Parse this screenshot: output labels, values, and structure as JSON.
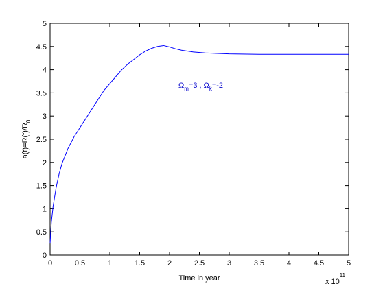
{
  "chart_data": {
    "type": "line",
    "xlabel": "Time in year",
    "xmultiplier": [
      "x 10",
      "11"
    ],
    "ylabel": [
      "a(t)=R(t)/R",
      "0"
    ],
    "annotation": [
      "Ω",
      "m",
      "=3 , Ω",
      "k",
      "=-2"
    ],
    "annotation_color": "#0000cc",
    "x": [
      0,
      0.02,
      0.05,
      0.1,
      0.15,
      0.2,
      0.3,
      0.4,
      0.5,
      0.6,
      0.7,
      0.8,
      0.9,
      1.0,
      1.1,
      1.2,
      1.3,
      1.4,
      1.5,
      1.6,
      1.7,
      1.8,
      1.9,
      2.0,
      2.1,
      2.2,
      2.4,
      2.6,
      2.8,
      3.0,
      3.5,
      4.0,
      4.5,
      5.0
    ],
    "series": [
      {
        "color": "#0000ff",
        "values": [
          0.25,
          0.7,
          1.05,
          1.45,
          1.75,
          1.98,
          2.3,
          2.55,
          2.75,
          2.95,
          3.15,
          3.35,
          3.55,
          3.7,
          3.85,
          4.0,
          4.12,
          4.22,
          4.32,
          4.4,
          4.46,
          4.5,
          4.52,
          4.49,
          4.45,
          4.42,
          4.38,
          4.36,
          4.35,
          4.34,
          4.33,
          4.33,
          4.33,
          4.33
        ]
      }
    ],
    "xlim": [
      0,
      5
    ],
    "xticks": [
      0,
      0.5,
      1,
      1.5,
      2,
      2.5,
      3,
      3.5,
      4,
      4.5,
      5
    ],
    "ylim": [
      0,
      5
    ],
    "yticks": [
      0,
      0.5,
      1,
      1.5,
      2,
      2.5,
      3,
      3.5,
      4,
      4.5,
      5
    ],
    "grid": false
  }
}
